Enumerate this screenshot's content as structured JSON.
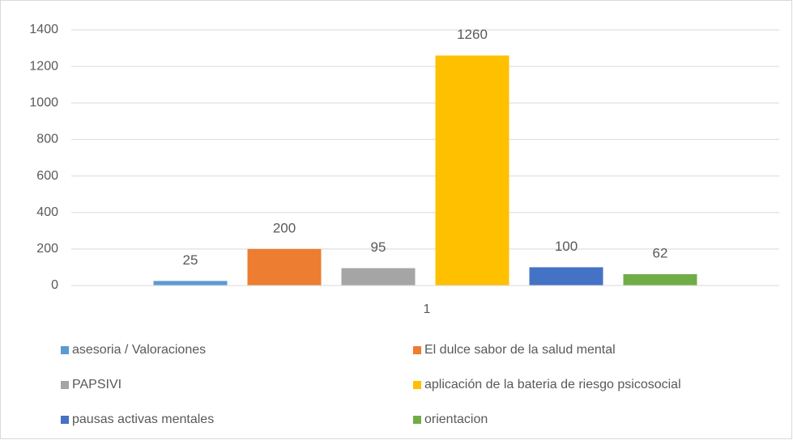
{
  "chart_data": {
    "type": "bar",
    "categories": [
      "1"
    ],
    "series": [
      {
        "name": "asesoria / Valoraciones",
        "color": "#5b9bd5",
        "values": [
          25
        ]
      },
      {
        "name": "El dulce sabor de la salud mental",
        "color": "#ed7d31",
        "values": [
          200
        ]
      },
      {
        "name": "PAPSIVI",
        "color": "#a5a5a5",
        "values": [
          95
        ]
      },
      {
        "name": "aplicación de la bateria de riesgo psicosocial",
        "color": "#ffc000",
        "values": [
          1260
        ]
      },
      {
        "name": "pausas activas mentales",
        "color": "#4472c4",
        "values": [
          100
        ]
      },
      {
        "name": "orientacion",
        "color": "#70ad47",
        "values": [
          62
        ]
      }
    ],
    "ylim": [
      0,
      1400
    ],
    "yticks": [
      0,
      200,
      400,
      600,
      800,
      1000,
      1200,
      1400
    ],
    "grid": true,
    "legend": "bottom"
  }
}
